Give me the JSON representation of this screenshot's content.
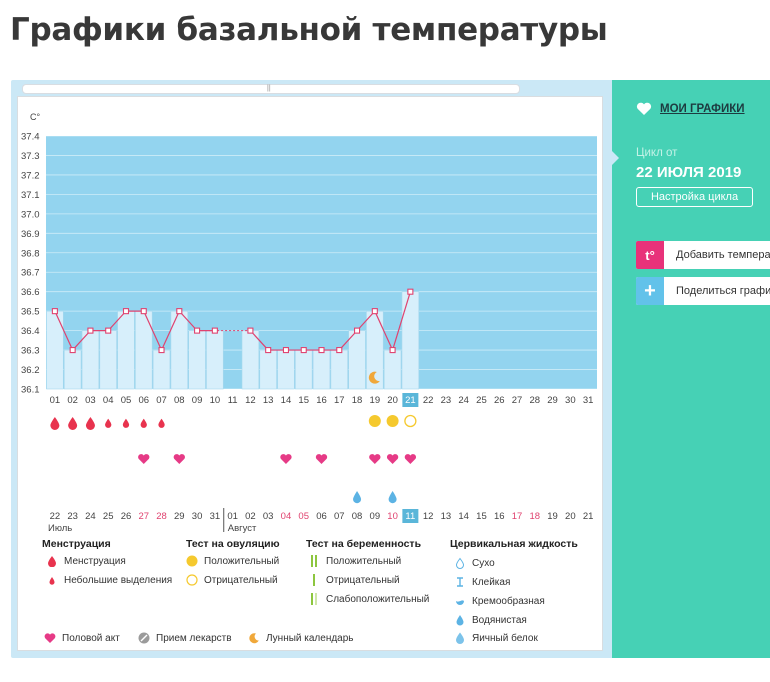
{
  "page": {
    "title": "Графики базальной температуры"
  },
  "chart_data": {
    "type": "line",
    "unit_label": "С°",
    "ylim": [
      36.1,
      37.4
    ],
    "yticks": [
      "37.4",
      "37.3",
      "37.2",
      "37.1",
      "37.0",
      "36.9",
      "36.8",
      "36.7",
      "36.6",
      "36.5",
      "36.4",
      "36.3",
      "36.2",
      "36.1"
    ],
    "days": [
      "01",
      "02",
      "03",
      "04",
      "05",
      "06",
      "07",
      "08",
      "09",
      "10",
      "11",
      "12",
      "13",
      "14",
      "15",
      "16",
      "17",
      "18",
      "19",
      "20",
      "21",
      "22",
      "23",
      "24",
      "25",
      "26",
      "27",
      "28",
      "29",
      "30",
      "31"
    ],
    "temperatures": [
      36.5,
      36.3,
      36.4,
      36.4,
      36.5,
      36.5,
      36.3,
      36.5,
      36.4,
      36.4,
      null,
      36.4,
      36.3,
      36.3,
      36.3,
      36.3,
      36.3,
      36.4,
      36.5,
      36.3,
      36.6,
      null,
      null,
      null,
      null,
      null,
      null,
      null,
      null,
      null,
      null
    ],
    "today_index": 20,
    "coverline": 36.4,
    "dates": [
      "22",
      "23",
      "24",
      "25",
      "26",
      "27",
      "28",
      "29",
      "30",
      "31",
      "01",
      "02",
      "03",
      "04",
      "05",
      "06",
      "07",
      "08",
      "09",
      "10",
      "11",
      "12",
      "13",
      "14",
      "15",
      "16",
      "17",
      "18",
      "19",
      "20",
      "21"
    ],
    "weekend_date_indices": [
      5,
      6,
      13,
      14,
      19,
      20,
      26,
      27
    ],
    "month_labels": [
      "Июль",
      "Август"
    ],
    "month_start_index": 10,
    "menstruation": [
      "heavy",
      "heavy",
      "heavy",
      "light",
      "light",
      "light",
      "light",
      "",
      "",
      "",
      "",
      "",
      "",
      "",
      "",
      "",
      "",
      "",
      "",
      "",
      "",
      "",
      "",
      "",
      "",
      "",
      "",
      "",
      "",
      "",
      ""
    ],
    "ovulation_test": [
      "",
      "",
      "",
      "",
      "",
      "",
      "",
      "",
      "",
      "",
      "",
      "",
      "",
      "",
      "",
      "",
      "",
      "",
      "positive",
      "positive",
      "negative",
      "",
      "",
      "",
      "",
      "",
      "",
      "",
      "",
      "",
      ""
    ],
    "intercourse_days": [
      5,
      7,
      13,
      15,
      18,
      19,
      20
    ],
    "cervical_fluid": {
      "17": "watery",
      "19": "watery"
    },
    "lunar_calendar_day": 18
  },
  "legend": {
    "menstruation": {
      "title": "Менструация",
      "items": [
        "Менструация",
        "Небольшие выделения"
      ]
    },
    "ovulation": {
      "title": "Тест на овуляцию",
      "items": [
        "Положительный",
        "Отрицательный"
      ]
    },
    "pregnancy": {
      "title": "Тест на беременность",
      "items": [
        "Положительный",
        "Отрицательный",
        "Слабоположительный"
      ]
    },
    "cervical": {
      "title": "Цервикальная жидкость",
      "items": [
        "Сухо",
        "Клейкая",
        "Кремообразная",
        "Водянистая",
        "Яичный белок"
      ]
    },
    "other": [
      "Половой акт",
      "Прием лекарств",
      "Лунный календарь"
    ]
  },
  "sidebar": {
    "my_charts": "МОИ ГРАФИКИ",
    "cycle_from": "Цикл от",
    "cycle_date": "22 ИЮЛЯ 2019",
    "cycle_settings": "Настройка цикла",
    "add_temperature": "Добавить температуру",
    "add_icon_text": "t°",
    "share": "Поделиться графиком",
    "share_icon_text": "+"
  },
  "colors": {
    "plot_bg": "#93d4ef",
    "bar_fill": "#d7effb",
    "line": "#e0426f",
    "today": "#5ab6d9",
    "heart": "#e63a86",
    "drop_red": "#e8334e",
    "ovulation_yellow": "#f5c92e",
    "watery_blue": "#5cb3e4",
    "sidebar_bg": "#46d1b5",
    "add_icon_bg": "#e8327a",
    "share_icon_bg": "#62c2ea"
  }
}
